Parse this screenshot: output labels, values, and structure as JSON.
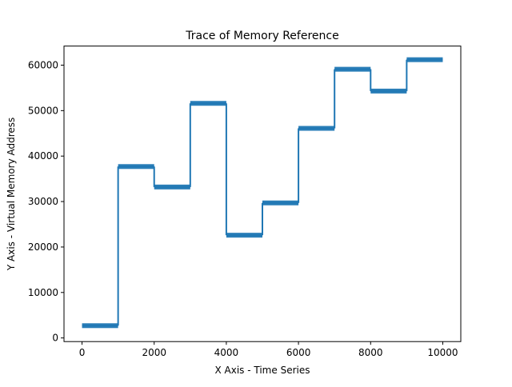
{
  "chart_data": {
    "type": "line",
    "title": "Trace of Memory Reference",
    "xlabel": "X Axis - Time Series",
    "ylabel": "Y Axis - Virtual Memory Address",
    "xlim": [
      -500,
      10500
    ],
    "ylim": [
      -800,
      64200
    ],
    "x_ticks": [
      0,
      2000,
      4000,
      6000,
      8000,
      10000
    ],
    "x_tick_labels": [
      "0",
      "2000",
      "4000",
      "6000",
      "8000",
      "10000"
    ],
    "y_ticks": [
      0,
      10000,
      20000,
      30000,
      40000,
      50000,
      60000
    ],
    "y_tick_labels": [
      "0",
      "10000",
      "20000",
      "30000",
      "40000",
      "50000",
      "60000"
    ],
    "grid": false,
    "series_color": "#1f77b4",
    "series": [
      {
        "values_note_x_step": "step plateaus",
        "segments": [
          {
            "x_start": 0,
            "x_end": 1000,
            "y": 2700
          },
          {
            "x_start": 1000,
            "x_end": 2000,
            "y": 37700
          },
          {
            "x_start": 2000,
            "x_end": 3000,
            "y": 33200
          },
          {
            "x_start": 3000,
            "x_end": 4000,
            "y": 51600
          },
          {
            "x_start": 4000,
            "x_end": 5000,
            "y": 22600
          },
          {
            "x_start": 5000,
            "x_end": 6000,
            "y": 29700
          },
          {
            "x_start": 6000,
            "x_end": 7000,
            "y": 46100
          },
          {
            "x_start": 7000,
            "x_end": 8000,
            "y": 59100
          },
          {
            "x_start": 8000,
            "x_end": 9000,
            "y": 54300
          },
          {
            "x_start": 9000,
            "x_end": 10000,
            "y": 61200
          }
        ]
      }
    ]
  }
}
